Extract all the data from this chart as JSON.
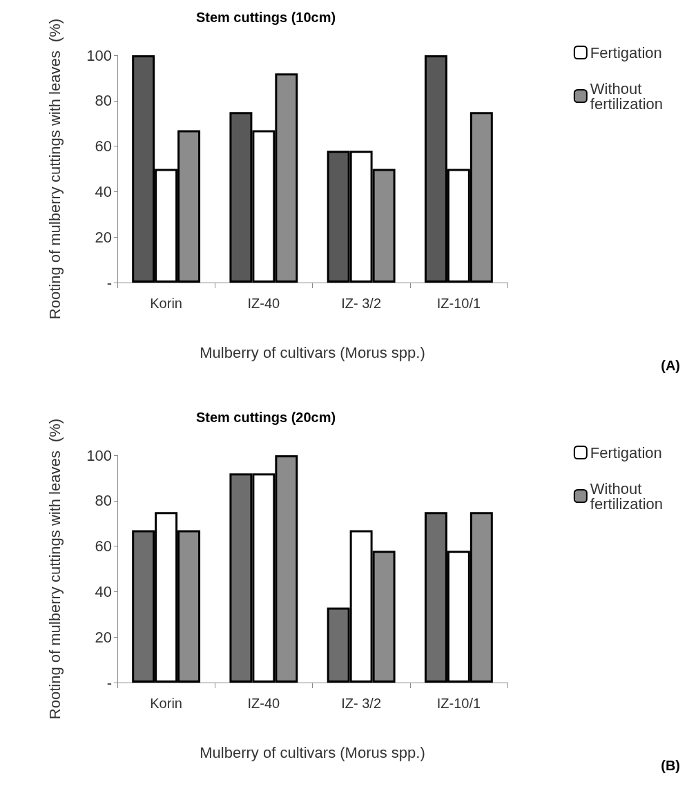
{
  "chart_data": [
    {
      "type": "bar",
      "title": "Stem cuttings (10cm)",
      "xlabel": "Mulberry of cultivars (Morus spp.)",
      "ylabel": "Rooting of mulberry cuttings with leaves  (%)",
      "categories": [
        "Korin",
        "IZ-40",
        "IZ- 3/2",
        "IZ-10/1"
      ],
      "series": [
        {
          "color": "#595959",
          "values": [
            100,
            75,
            58,
            100
          ]
        },
        {
          "name": "Fertigation",
          "color": "#ffffff",
          "values": [
            50,
            67,
            58,
            50
          ]
        },
        {
          "name": "Without fertilization",
          "color": "#8c8c8c",
          "values": [
            67,
            92,
            50,
            75
          ]
        }
      ],
      "ylim": [
        0,
        100
      ],
      "yticks": [
        {
          "value": 0,
          "label": "-"
        },
        20,
        40,
        60,
        80,
        100
      ],
      "grid": false,
      "legend": "right",
      "annotations": [
        "(A)"
      ]
    },
    {
      "type": "bar",
      "title": "Stem cuttings (20cm)",
      "xlabel": "Mulberry of cultivars (Morus spp.)",
      "ylabel": "Rooting of mulberry cuttings with leaves  (%)",
      "categories": [
        "Korin",
        "IZ-40",
        "IZ- 3/2",
        "IZ-10/1"
      ],
      "series": [
        {
          "color": "#6e6e6e",
          "values": [
            67,
            92,
            33,
            75
          ]
        },
        {
          "name": "Fertigation",
          "color": "#ffffff",
          "values": [
            75,
            92,
            67,
            58
          ]
        },
        {
          "name": "Without fertilization",
          "color": "#8c8c8c",
          "values": [
            67,
            100,
            58,
            75
          ]
        }
      ],
      "ylim": [
        0,
        100
      ],
      "yticks": [
        {
          "value": 0,
          "label": "-"
        },
        20,
        40,
        60,
        80,
        100
      ],
      "grid": false,
      "legend": "right",
      "annotations": [
        "(B)"
      ]
    }
  ]
}
